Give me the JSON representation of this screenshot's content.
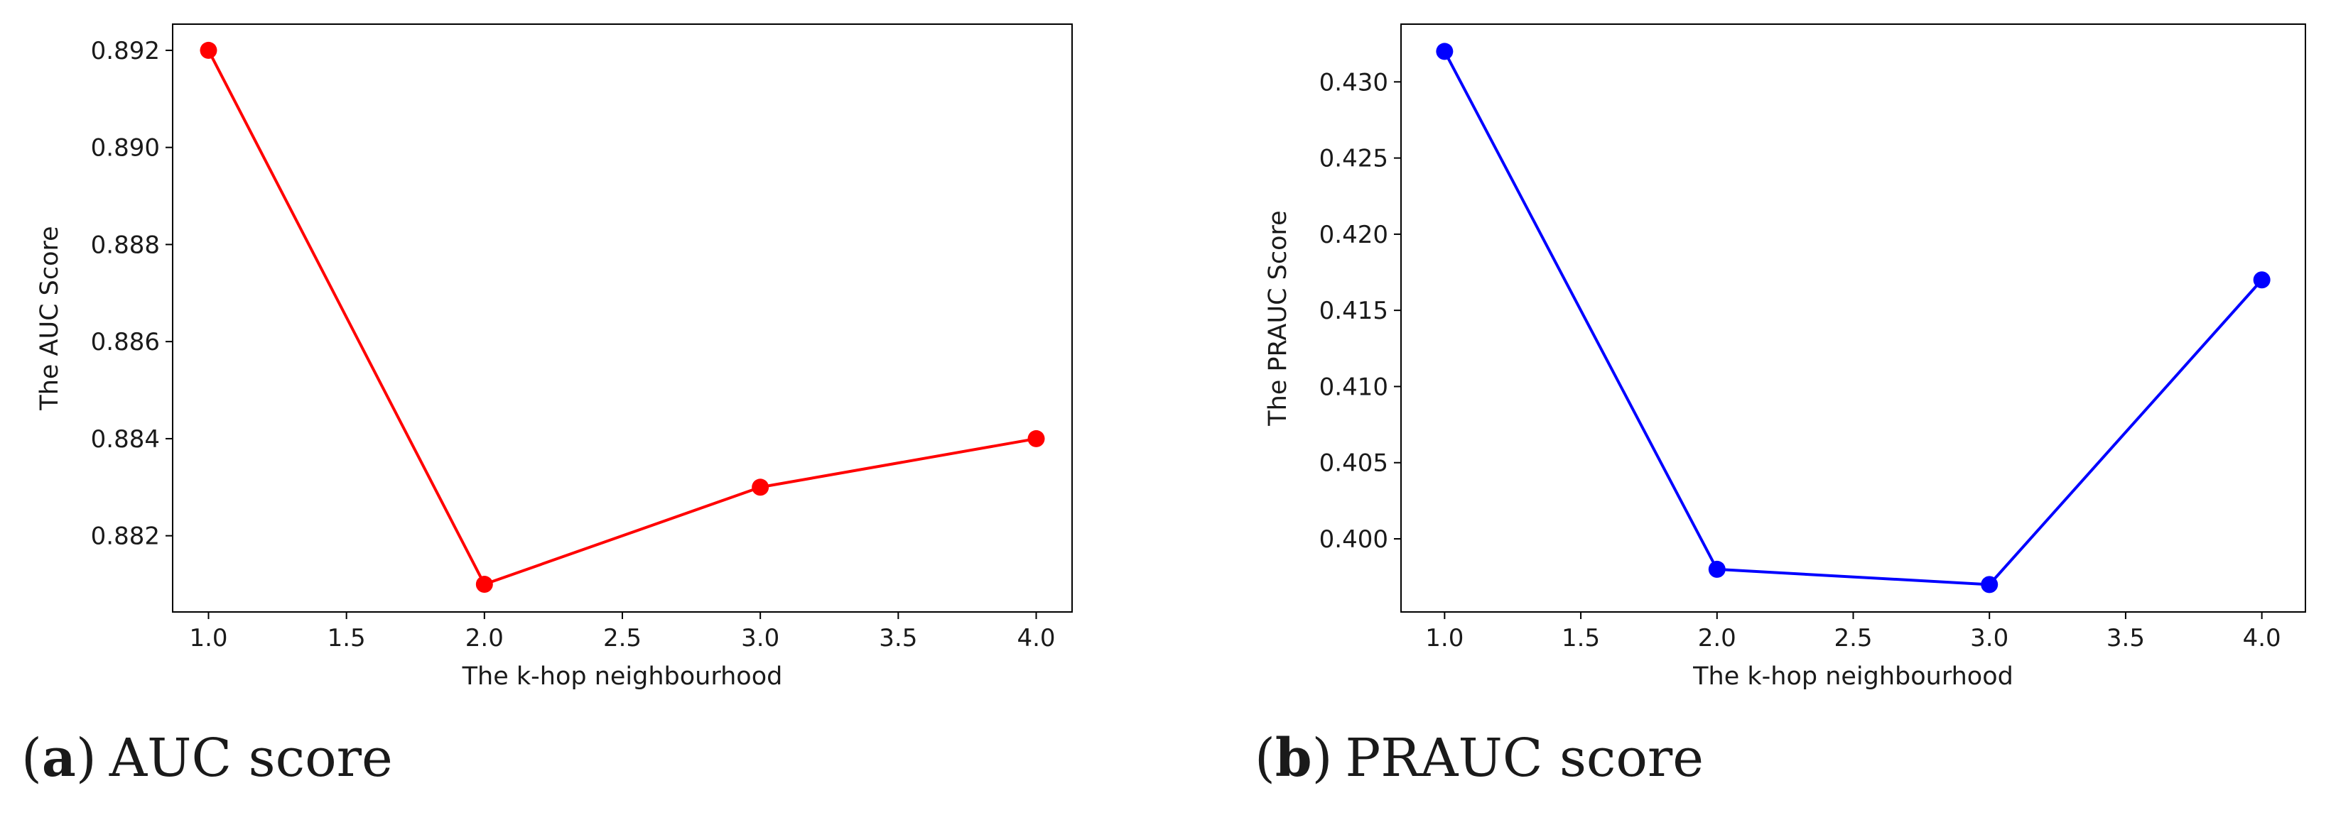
{
  "charts": [
    {
      "caption_letter": "a",
      "caption_text": "AUC score",
      "chart_data": {
        "type": "line",
        "x": [
          1.0,
          2.0,
          3.0,
          4.0
        ],
        "series": [
          {
            "values": [
              0.892,
              0.881,
              0.883,
              0.884
            ],
            "color": "#ff0000",
            "marker": "circle"
          }
        ],
        "xlabel": "The k-hop neighbourhood",
        "ylabel": "The AUC Score",
        "xlim": [
          0.87,
          4.13
        ],
        "ylim": [
          0.88043,
          0.89254
        ],
        "xticks": [
          1.0,
          1.5,
          2.0,
          2.5,
          3.0,
          3.5,
          4.0
        ],
        "xtick_labels": [
          "1.0",
          "1.5",
          "2.0",
          "2.5",
          "3.0",
          "3.5",
          "4.0"
        ],
        "yticks": [
          0.882,
          0.884,
          0.886,
          0.888,
          0.89,
          0.892
        ],
        "ytick_labels": [
          "0.882",
          "0.884",
          "0.886",
          "0.888",
          "0.890",
          "0.892"
        ],
        "grid": false
      }
    },
    {
      "caption_letter": "b",
      "caption_text": "PRAUC score",
      "chart_data": {
        "type": "line",
        "x": [
          1.0,
          2.0,
          3.0,
          4.0
        ],
        "series": [
          {
            "values": [
              0.432,
              0.398,
              0.397,
              0.417
            ],
            "color": "#0000ff",
            "marker": "circle"
          }
        ],
        "xlabel": "The k-hop neighbourhood",
        "ylabel": "The PRAUC Score",
        "xlim": [
          0.84,
          4.16
        ],
        "ylim": [
          0.3952,
          0.43379
        ],
        "xticks": [
          1.0,
          1.5,
          2.0,
          2.5,
          3.0,
          3.5,
          4.0
        ],
        "xtick_labels": [
          "1.0",
          "1.5",
          "2.0",
          "2.5",
          "3.0",
          "3.5",
          "4.0"
        ],
        "yticks": [
          0.4,
          0.405,
          0.41,
          0.415,
          0.42,
          0.425,
          0.43
        ],
        "ytick_labels": [
          "0.400",
          "0.405",
          "0.410",
          "0.415",
          "0.420",
          "0.425",
          "0.430"
        ],
        "grid": false
      }
    }
  ]
}
